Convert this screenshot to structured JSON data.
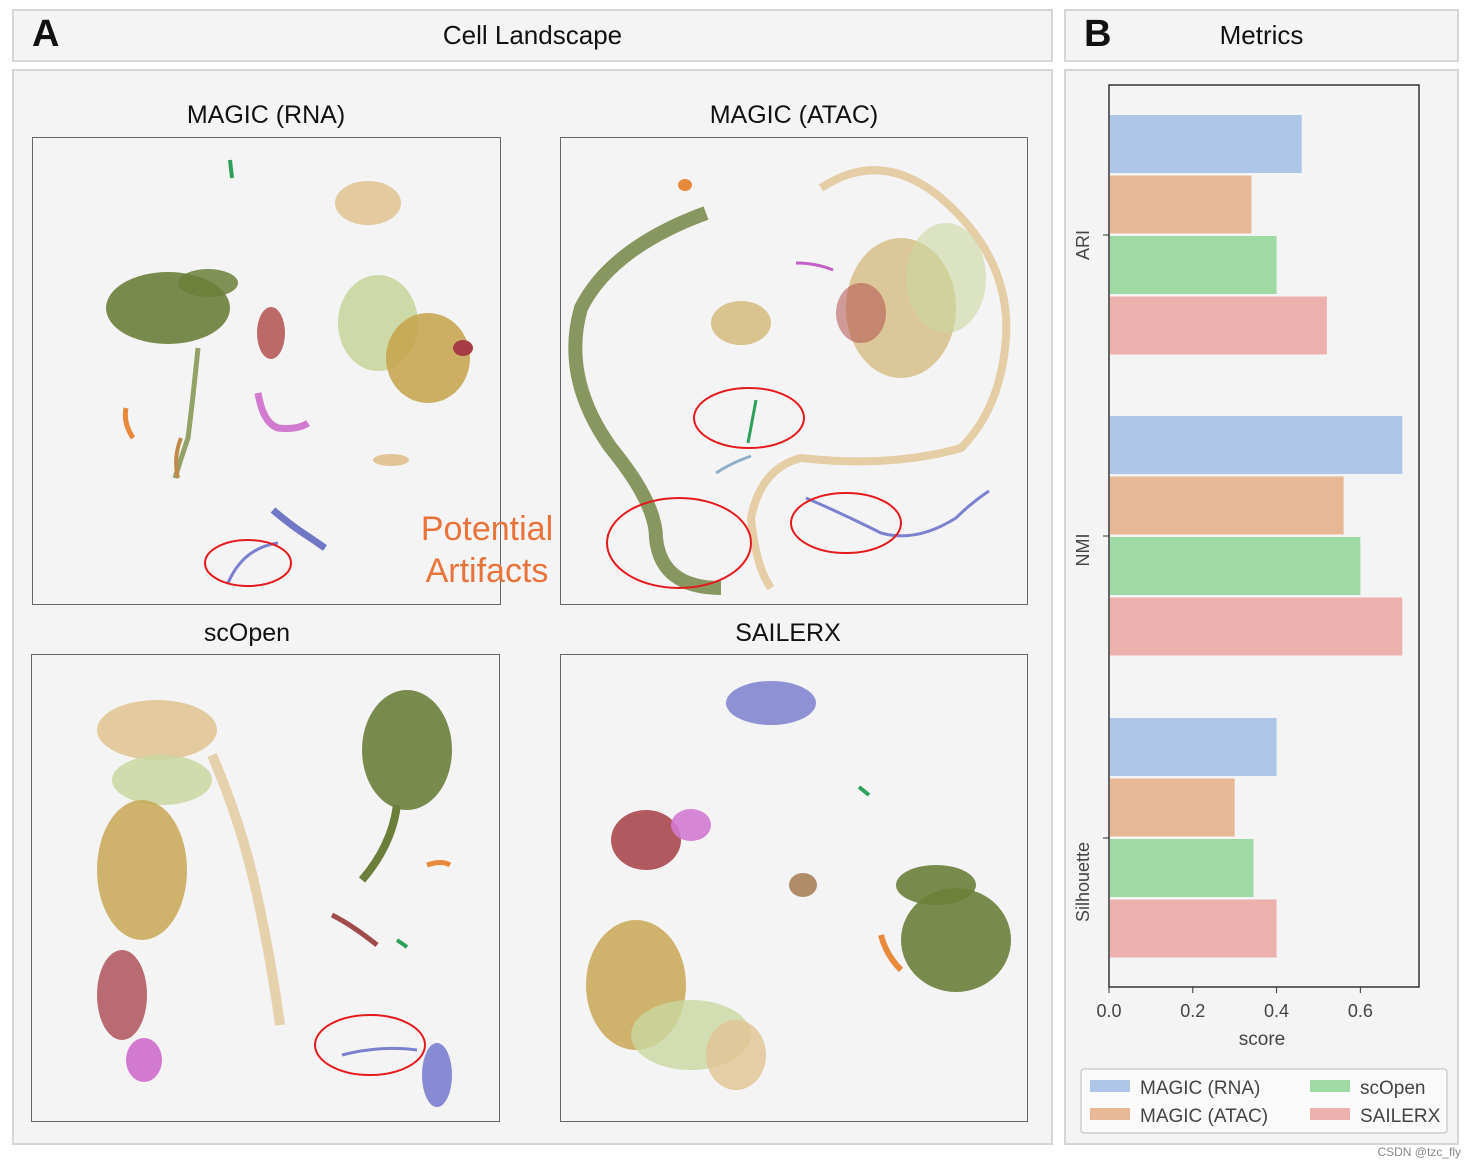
{
  "panel_a": {
    "letter": "A",
    "title": "Cell Landscape",
    "plots": [
      {
        "title": "MAGIC (RNA)"
      },
      {
        "title": "MAGIC (ATAC)"
      },
      {
        "title": "scOpen"
      },
      {
        "title": "SAILERX"
      }
    ],
    "annotation_line1": "Potential",
    "annotation_line2": "Artifacts"
  },
  "panel_b": {
    "letter": "B",
    "title": "Metrics"
  },
  "watermark": "CSDN @tzc_fly",
  "colors": {
    "MAGIC (RNA)": "#aec7e8",
    "MAGIC (ATAC)": "#e8b896",
    "scOpen": "#9fd9a4",
    "SAILERX": "#ecb0ad",
    "annotation": "#e8743b",
    "circle": "#e41a1c"
  },
  "chart_data": {
    "type": "bar",
    "orientation": "horizontal",
    "title": "Metrics",
    "categories": [
      "ARI",
      "NMI",
      "Silhouette"
    ],
    "series": [
      {
        "name": "MAGIC (RNA)",
        "values": [
          0.46,
          0.7,
          0.4
        ]
      },
      {
        "name": "MAGIC (ATAC)",
        "values": [
          0.34,
          0.56,
          0.3
        ]
      },
      {
        "name": "scOpen",
        "values": [
          0.4,
          0.6,
          0.345
        ]
      },
      {
        "name": "SAILERX",
        "values": [
          0.52,
          0.7,
          0.4
        ]
      }
    ],
    "xlabel": "score",
    "ylabel": "",
    "xlim": [
      0,
      0.74
    ],
    "xticks": [
      "0.0",
      "0.2",
      "0.4",
      "0.6"
    ],
    "legend": [
      "MAGIC (RNA)",
      "MAGIC (ATAC)",
      "scOpen",
      "SAILERX"
    ],
    "legend_position": "bottom"
  }
}
